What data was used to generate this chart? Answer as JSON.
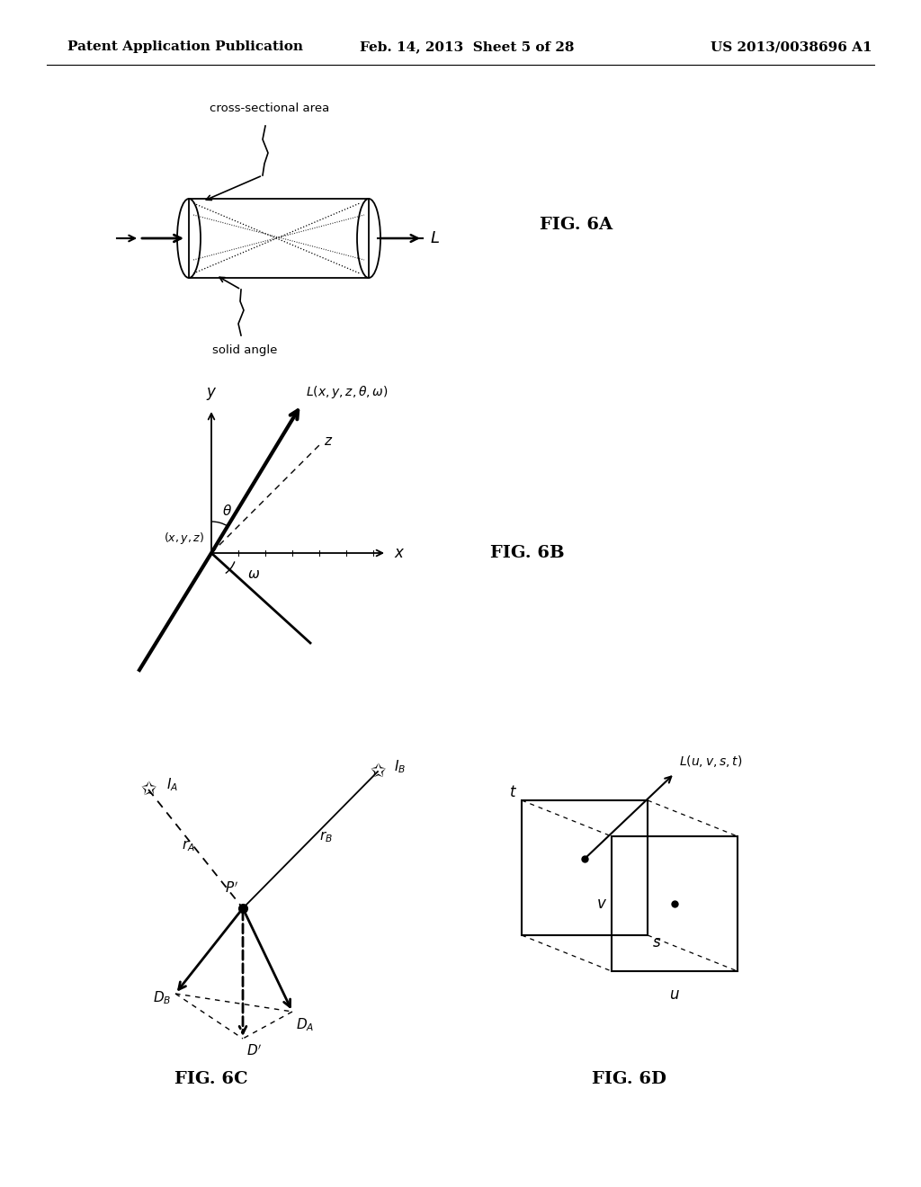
{
  "header_left": "Patent Application Publication",
  "header_center": "Feb. 14, 2013  Sheet 5 of 28",
  "header_right": "US 2013/0038696 A1",
  "fig6a_label": "FIG. 6A",
  "fig6b_label": "FIG. 6B",
  "fig6c_label": "FIG. 6C",
  "fig6d_label": "FIG. 6D",
  "bg_color": "#ffffff",
  "text_color": "#000000"
}
